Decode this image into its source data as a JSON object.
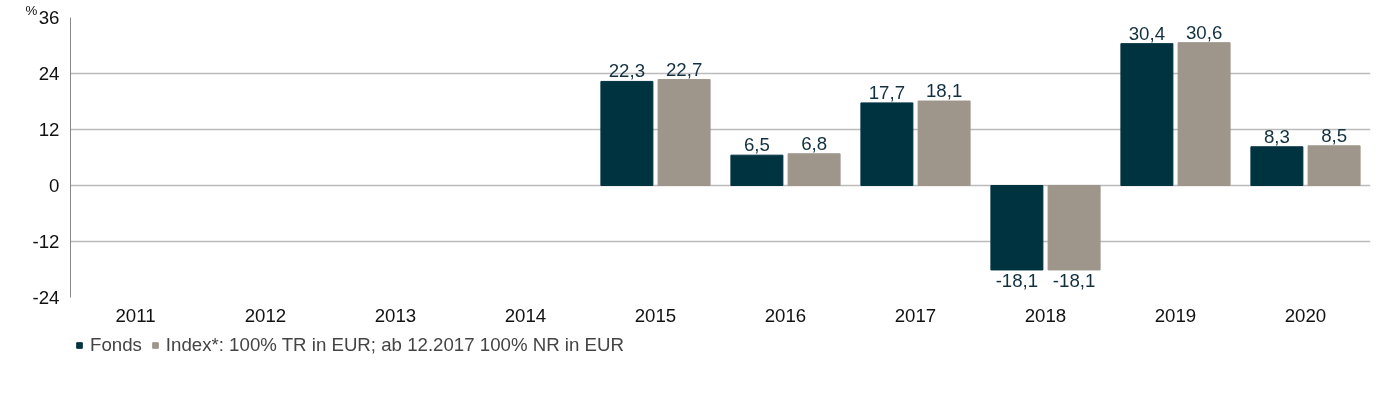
{
  "chart_data": {
    "type": "bar",
    "ylabel": "%",
    "categories": [
      "2011",
      "2012",
      "2013",
      "2014",
      "2015",
      "2016",
      "2017",
      "2018",
      "2019",
      "2020"
    ],
    "series": [
      {
        "name": "Fonds",
        "color": "#003340",
        "values": [
          null,
          null,
          null,
          null,
          22.3,
          6.5,
          17.7,
          -18.1,
          30.4,
          8.3
        ],
        "value_labels": [
          null,
          null,
          null,
          null,
          "22,3",
          "6,5",
          "17,7",
          "-18,1",
          "30,4",
          "8,3"
        ]
      },
      {
        "name": "Index*: 100% TR in EUR; ab 12.2017 100% NR in EUR",
        "color": "#9e958b",
        "values": [
          null,
          null,
          null,
          null,
          22.7,
          6.8,
          18.1,
          -18.1,
          30.6,
          8.5
        ],
        "value_labels": [
          null,
          null,
          null,
          null,
          "22,7",
          "6,8",
          "18,1",
          "-18,1",
          "30,6",
          "8,5"
        ]
      }
    ],
    "ylim": [
      -24,
      36
    ],
    "yticks": [
      -24,
      -12,
      0,
      12,
      24,
      36
    ],
    "grid": "y",
    "legend": "bottom"
  }
}
